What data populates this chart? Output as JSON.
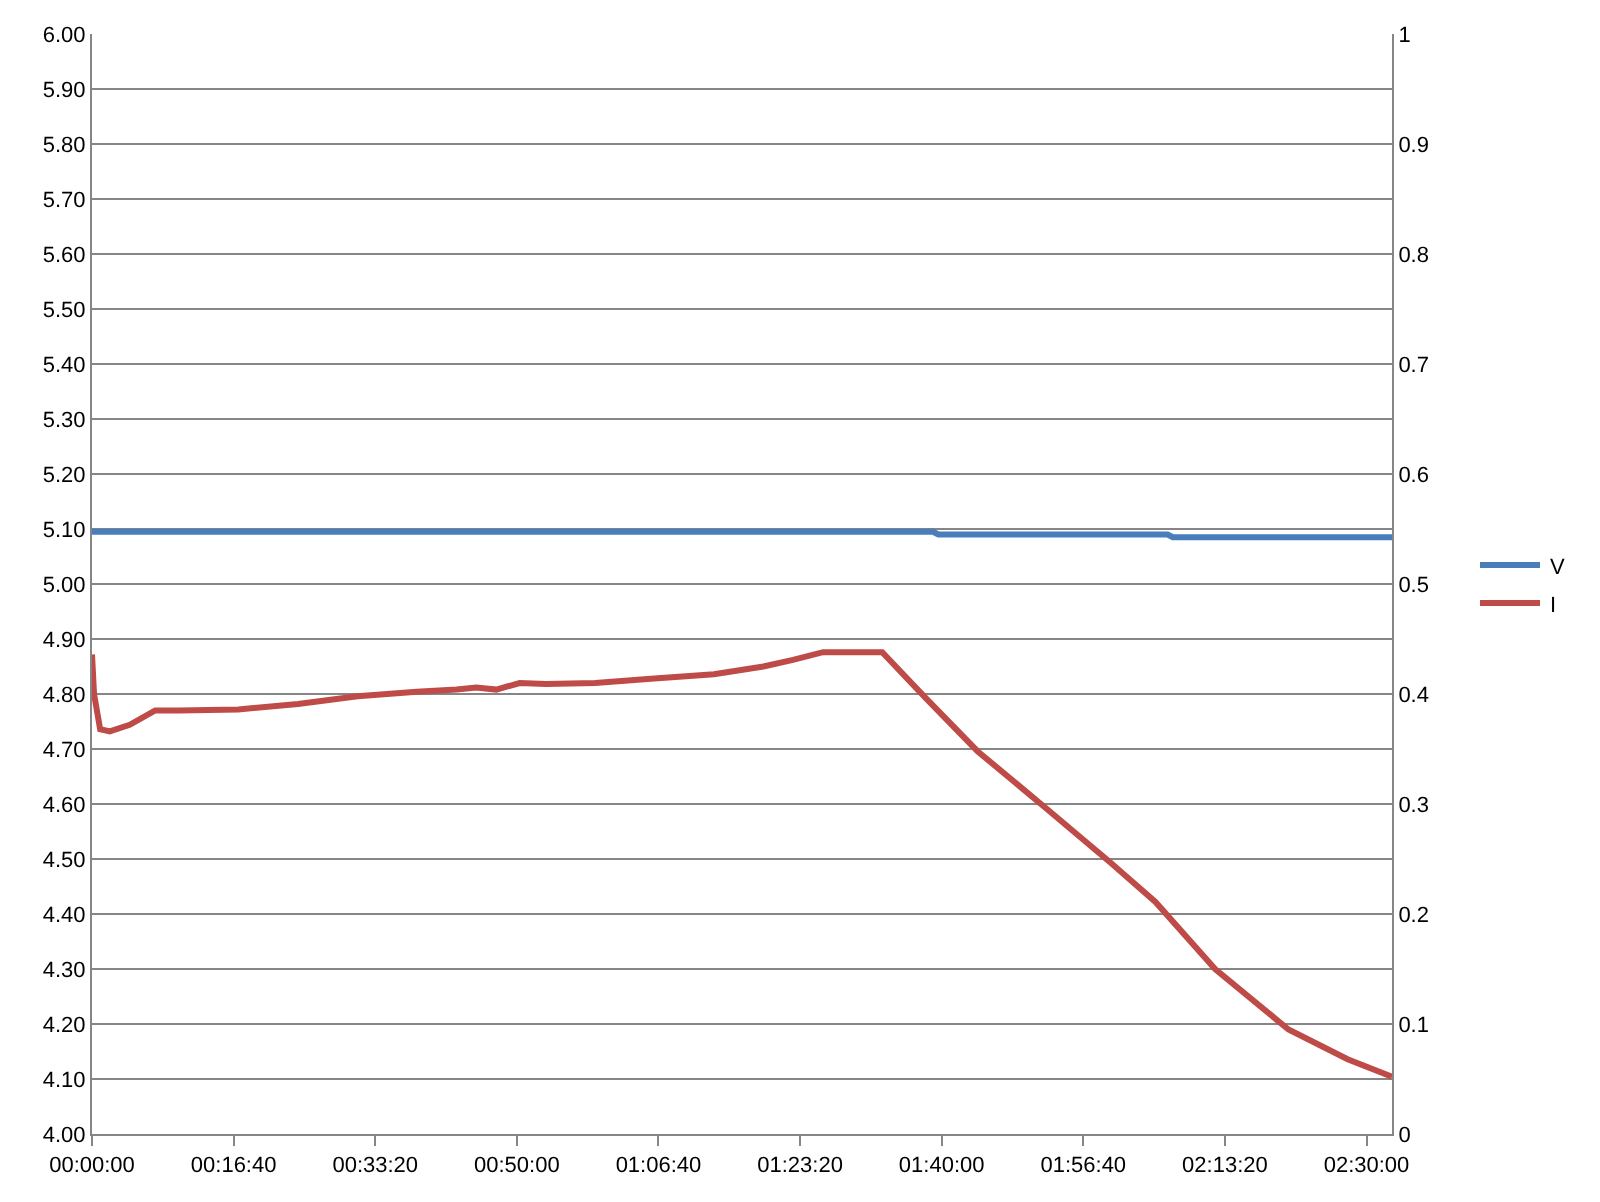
{
  "chart_data": {
    "type": "line",
    "xlim": [
      0,
      2.55
    ],
    "xticks": [
      {
        "value": 0,
        "label": "00:00:00"
      },
      {
        "value": 0.27778,
        "label": "00:16:40"
      },
      {
        "value": 0.55556,
        "label": "00:33:20"
      },
      {
        "value": 0.83333,
        "label": "00:50:00"
      },
      {
        "value": 1.11111,
        "label": "01:06:40"
      },
      {
        "value": 1.38889,
        "label": "01:23:20"
      },
      {
        "value": 1.66667,
        "label": "01:40:00"
      },
      {
        "value": 1.94444,
        "label": "01:56:40"
      },
      {
        "value": 2.22222,
        "label": "02:13:20"
      },
      {
        "value": 2.5,
        "label": "02:30:00"
      }
    ],
    "ylim": [
      4,
      6
    ],
    "yticks": [
      {
        "value": 4,
        "label": "4.00"
      },
      {
        "value": 4.1,
        "label": "4.10"
      },
      {
        "value": 4.2,
        "label": "4.20"
      },
      {
        "value": 4.3,
        "label": "4.30"
      },
      {
        "value": 4.4,
        "label": "4.40"
      },
      {
        "value": 4.5,
        "label": "4.50"
      },
      {
        "value": 4.6,
        "label": "4.60"
      },
      {
        "value": 4.7,
        "label": "4.70"
      },
      {
        "value": 4.8,
        "label": "4.80"
      },
      {
        "value": 4.9,
        "label": "4.90"
      },
      {
        "value": 5,
        "label": "5.00"
      },
      {
        "value": 5.1,
        "label": "5.10"
      },
      {
        "value": 5.2,
        "label": "5.20"
      },
      {
        "value": 5.3,
        "label": "5.30"
      },
      {
        "value": 5.4,
        "label": "5.40"
      },
      {
        "value": 5.5,
        "label": "5.50"
      },
      {
        "value": 5.6,
        "label": "5.60"
      },
      {
        "value": 5.7,
        "label": "5.70"
      },
      {
        "value": 5.8,
        "label": "5.80"
      },
      {
        "value": 5.9,
        "label": "5.90"
      },
      {
        "value": 6,
        "label": "6.00"
      }
    ],
    "y2lim": [
      0,
      1
    ],
    "y2ticks": [
      0,
      0.1,
      0.2,
      0.3,
      0.4,
      0.5,
      0.6,
      0.7,
      0.8,
      0.9,
      1
    ],
    "grid": "y",
    "legend": "right",
    "marker": "none",
    "line_style": "solid",
    "series": [
      {
        "name": "V",
        "color": "#4a7ebb",
        "x": [
          0,
          1.65,
          1.66,
          2.11,
          2.12,
          2.55
        ],
        "values": [
          5.095,
          5.095,
          5.09,
          5.09,
          5.085,
          5.085
        ]
      },
      {
        "name": "I",
        "color": "#be4b48",
        "axis": "y2",
        "x": [
          0,
          0.004,
          0.016,
          0.035,
          0.074,
          0.124,
          0.171,
          0.287,
          0.404,
          0.521,
          0.637,
          0.715,
          0.754,
          0.793,
          0.839,
          0.89,
          0.987,
          1.103,
          1.22,
          1.317,
          1.375,
          1.434,
          1.55,
          1.636,
          1.737,
          1.869,
          1.997,
          2.086,
          2.203,
          2.347,
          2.463,
          2.55
        ],
        "values": [
          0.436,
          0.4,
          0.368,
          0.366,
          0.372,
          0.385,
          0.385,
          0.386,
          0.391,
          0.398,
          0.402,
          0.404,
          0.406,
          0.404,
          0.41,
          0.409,
          0.41,
          0.414,
          0.418,
          0.425,
          0.431,
          0.438,
          0.438,
          0.396,
          0.348,
          0.297,
          0.247,
          0.211,
          0.15,
          0.095,
          0.068,
          0.052
        ]
      }
    ]
  }
}
